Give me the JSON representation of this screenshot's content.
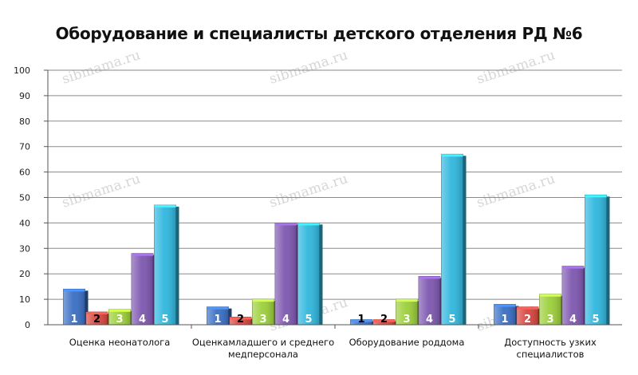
{
  "chart_data": {
    "type": "bar",
    "title": "Оборудование и специалисты детского отделения РД №6",
    "xlabel": "",
    "ylabel": "",
    "ylim": [
      0,
      100
    ],
    "yticks": [
      0,
      10,
      20,
      30,
      40,
      50,
      60,
      70,
      80,
      90,
      100
    ],
    "grid": true,
    "legend": "none",
    "categories": [
      [
        "Оценка неонатолога"
      ],
      [
        "Оценкамладшего и среднего",
        "медперсонала"
      ],
      [
        "Оборудование роддома"
      ],
      [
        "Доступность узких",
        "специалистов"
      ]
    ],
    "series": [
      {
        "label": "1",
        "color": "#3a6fc4",
        "values": [
          14,
          7,
          2,
          8
        ]
      },
      {
        "label": "2",
        "color": "#d9463f",
        "values": [
          5,
          3,
          2,
          7
        ]
      },
      {
        "label": "3",
        "color": "#9ccf3a",
        "values": [
          6,
          10,
          10,
          12
        ]
      },
      {
        "label": "4",
        "color": "#7e57b0",
        "values": [
          28,
          40,
          19,
          23
        ]
      },
      {
        "label": "5",
        "color": "#30b7de",
        "values": [
          47,
          40,
          67,
          51
        ]
      }
    ]
  },
  "watermark": "sibmama.ru"
}
